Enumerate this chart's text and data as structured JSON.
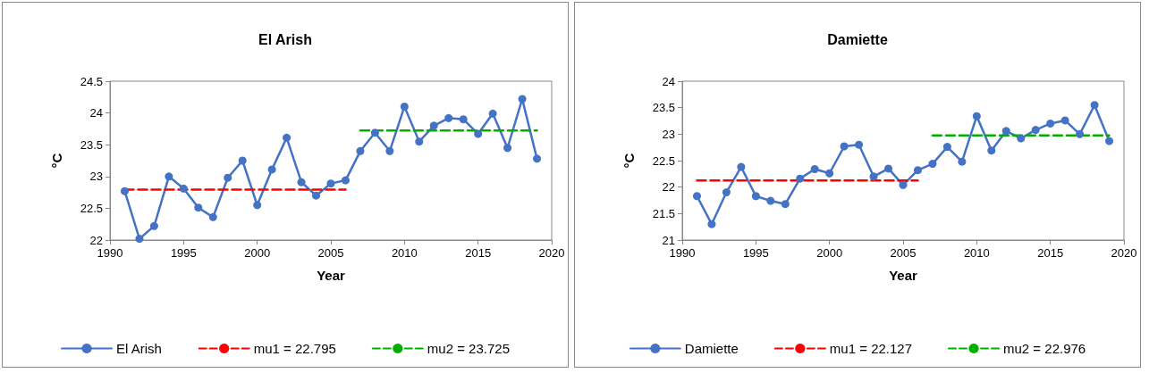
{
  "chart_data": [
    {
      "type": "line",
      "title": "El Arish",
      "xlabel": "Year",
      "ylabel": "°C",
      "xlim": [
        1990,
        2020
      ],
      "xticks": [
        1990,
        1995,
        2000,
        2005,
        2010,
        2015,
        2020
      ],
      "ylim": [
        22,
        24.5
      ],
      "yticks": [
        22,
        22.5,
        23,
        23.5,
        24,
        24.5
      ],
      "grid": false,
      "legend": "bottom",
      "series": [
        {
          "name": "El Arish",
          "color": "#4472c4",
          "marker": "circle",
          "line_style": "solid",
          "x": [
            1991,
            1992,
            1993,
            1994,
            1995,
            1996,
            1997,
            1998,
            1999,
            2000,
            2001,
            2002,
            2003,
            2004,
            2005,
            2006,
            2007,
            2008,
            2009,
            2010,
            2011,
            2012,
            2013,
            2014,
            2015,
            2016,
            2017,
            2018,
            2019
          ],
          "values": [
            22.77,
            22.02,
            22.22,
            23.0,
            22.81,
            22.51,
            22.36,
            22.98,
            23.25,
            22.55,
            23.11,
            23.61,
            22.91,
            22.7,
            22.89,
            22.94,
            23.4,
            23.69,
            23.4,
            24.1,
            23.55,
            23.8,
            23.92,
            23.9,
            23.67,
            23.99,
            23.45,
            24.22,
            23.28
          ]
        },
        {
          "name": "mu1 = 22.795",
          "color": "#ff0000",
          "marker": "none",
          "line_style": "dashed",
          "x": [
            1991,
            2006
          ],
          "values": [
            22.795,
            22.795
          ]
        },
        {
          "name": "mu2 = 23.725",
          "color": "#00b000",
          "marker": "none",
          "line_style": "dashed",
          "x": [
            2007,
            2019
          ],
          "values": [
            23.725,
            23.725
          ]
        }
      ]
    },
    {
      "type": "line",
      "title": "Damiette",
      "xlabel": "Year",
      "ylabel": "°C",
      "xlim": [
        1990,
        2020
      ],
      "xticks": [
        1990,
        1995,
        2000,
        2005,
        2010,
        2015,
        2020
      ],
      "ylim": [
        21,
        24
      ],
      "yticks": [
        21,
        21.5,
        22,
        22.5,
        23,
        23.5,
        24
      ],
      "grid": false,
      "legend": "bottom",
      "series": [
        {
          "name": "Damiette",
          "color": "#4472c4",
          "marker": "circle",
          "line_style": "solid",
          "x": [
            1991,
            1992,
            1993,
            1994,
            1995,
            1996,
            1997,
            1998,
            1999,
            2000,
            2001,
            2002,
            2003,
            2004,
            2005,
            2006,
            2007,
            2008,
            2009,
            2010,
            2011,
            2012,
            2013,
            2014,
            2015,
            2016,
            2017,
            2018,
            2019
          ],
          "values": [
            21.83,
            21.3,
            21.9,
            22.38,
            21.83,
            21.74,
            21.68,
            22.16,
            22.34,
            22.26,
            22.77,
            22.8,
            22.2,
            22.35,
            22.04,
            22.32,
            22.44,
            22.76,
            22.48,
            23.34,
            22.69,
            23.06,
            22.92,
            23.08,
            23.2,
            23.26,
            23.0,
            23.55,
            22.87
          ]
        },
        {
          "name": "mu1 = 22.127",
          "color": "#ff0000",
          "marker": "none",
          "line_style": "dashed",
          "x": [
            1991,
            2006
          ],
          "values": [
            22.127,
            22.127
          ]
        },
        {
          "name": "mu2 = 22.976",
          "color": "#00b000",
          "marker": "none",
          "line_style": "dashed",
          "x": [
            2007,
            2019
          ],
          "values": [
            22.976,
            22.976
          ]
        }
      ]
    }
  ]
}
